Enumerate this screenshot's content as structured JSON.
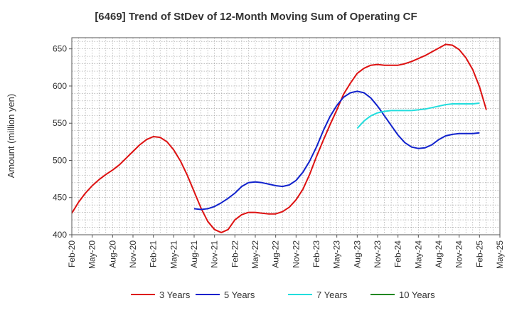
{
  "chart_data": {
    "type": "line",
    "title": "[6469]  Trend of StDev of 12-Month Moving Sum of Operating CF",
    "ylabel": "Amount (million yen)",
    "xlabel": "",
    "ylim": [
      400,
      665
    ],
    "yticks": [
      400,
      450,
      500,
      550,
      600,
      650
    ],
    "grid": true,
    "legend_position": "bottom",
    "x_tick_labels": [
      "Feb-20",
      "May-20",
      "Aug-20",
      "Nov-20",
      "Feb-21",
      "May-21",
      "Aug-21",
      "Nov-21",
      "Feb-22",
      "May-22",
      "Aug-22",
      "Nov-22",
      "Feb-23",
      "May-23",
      "Aug-23",
      "Nov-23",
      "Feb-24",
      "May-24",
      "Aug-24",
      "Nov-24",
      "Feb-25",
      "May-25"
    ],
    "series": [
      {
        "name": "3 Years",
        "color": "#dd1111",
        "start_index": 0,
        "values": [
          429,
          444,
          456,
          466,
          474,
          481,
          487,
          494,
          503,
          512,
          521,
          528,
          532,
          531,
          525,
          514,
          499,
          480,
          458,
          436,
          418,
          407,
          403,
          407,
          420,
          427,
          430,
          430,
          429,
          428,
          428,
          431,
          437,
          447,
          461,
          481,
          505,
          527,
          548,
          568,
          589,
          604,
          617,
          624,
          628,
          629,
          628,
          628,
          628,
          630,
          633,
          637,
          641,
          646,
          651,
          656,
          655,
          649,
          638,
          622,
          599,
          568
        ]
      },
      {
        "name": "5 Years",
        "color": "#1122cc",
        "start_index": 18,
        "values": [
          435,
          434,
          435,
          438,
          443,
          449,
          456,
          465,
          470,
          471,
          470,
          468,
          466,
          465,
          467,
          473,
          484,
          499,
          518,
          540,
          559,
          574,
          585,
          591,
          593,
          591,
          584,
          573,
          560,
          547,
          534,
          524,
          518,
          516,
          517,
          521,
          528,
          533,
          535,
          536,
          536,
          536,
          537
        ]
      },
      {
        "name": "7 Years",
        "color": "#22dddd",
        "start_index": 42,
        "values": [
          543,
          553,
          560,
          564,
          566,
          567,
          567,
          567,
          567,
          568,
          569,
          571,
          573,
          575,
          576,
          576,
          576,
          576,
          577
        ]
      },
      {
        "name": "10 Years",
        "color": "#228822",
        "start_index": 0,
        "values": []
      }
    ]
  }
}
